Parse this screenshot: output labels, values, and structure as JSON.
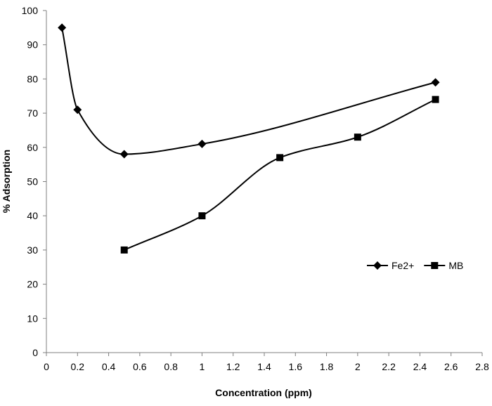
{
  "chart_data": {
    "type": "line",
    "title": "",
    "xlabel": "Concentration (ppm)",
    "ylabel": "% Adsorption",
    "xlim": [
      0,
      2.8
    ],
    "ylim": [
      0,
      100
    ],
    "xticks": [
      "0",
      "0.2",
      "0.4",
      "0.6",
      "0.8",
      "1",
      "1.2",
      "1.4",
      "1.6",
      "1.8",
      "2",
      "2.2",
      "2.4",
      "2.6",
      "2.8"
    ],
    "yticks": [
      "0",
      "10",
      "20",
      "30",
      "40",
      "50",
      "60",
      "70",
      "80",
      "90",
      "100"
    ],
    "grid": false,
    "smooth": true,
    "legend_position": "right",
    "series": [
      {
        "name": "Fe2+",
        "marker": "diamond",
        "color": "#000000",
        "x": [
          0.1,
          0.2,
          0.5,
          1,
          2.5
        ],
        "y": [
          95,
          71,
          58,
          61,
          79
        ]
      },
      {
        "name": "MB",
        "marker": "square",
        "color": "#000000",
        "x": [
          0.5,
          1,
          1.5,
          2,
          2.5
        ],
        "y": [
          30,
          40,
          57,
          63,
          74
        ]
      }
    ]
  }
}
